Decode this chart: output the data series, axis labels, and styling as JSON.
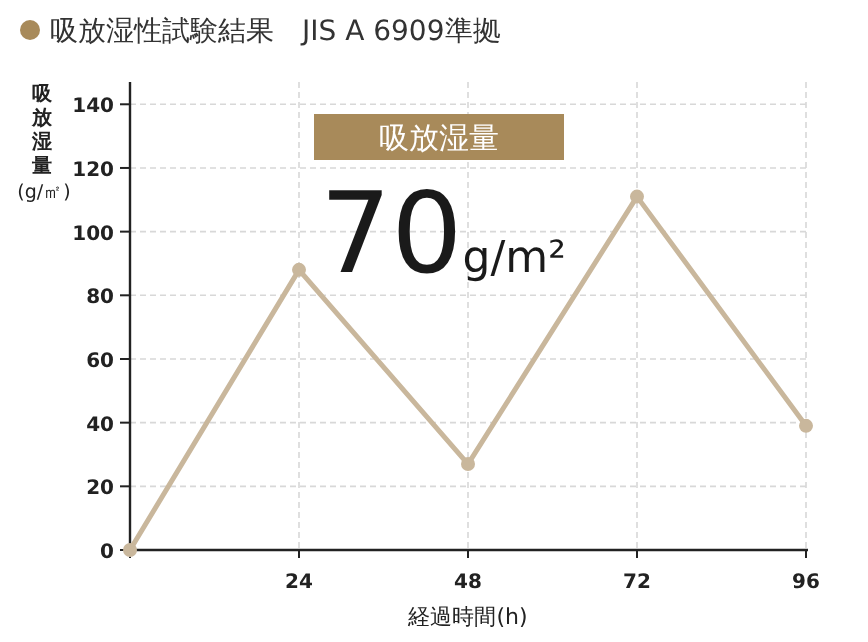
{
  "chart_data": {
    "type": "line",
    "title": "吸放湿性試験結果　JIS A 6909準拠",
    "xlabel": "経過時間(h)",
    "ylabel": "吸放湿量(g/㎡)",
    "annotations": [
      "吸放湿量",
      "70g/m²"
    ],
    "x": [
      0,
      24,
      48,
      72,
      96
    ],
    "series": [
      {
        "color": "#c9b79c",
        "values": [
          0,
          88,
          27,
          111,
          39
        ]
      }
    ],
    "xlim": [
      0,
      96
    ],
    "xticks": [
      {
        "value": 0,
        "label": null
      },
      24,
      48,
      72,
      96
    ],
    "ylim": [
      0,
      147
    ],
    "yticks": [
      0,
      20,
      40,
      60,
      80,
      100,
      120,
      140
    ],
    "grid": true,
    "marker": "circle",
    "line_style": "solid"
  }
}
